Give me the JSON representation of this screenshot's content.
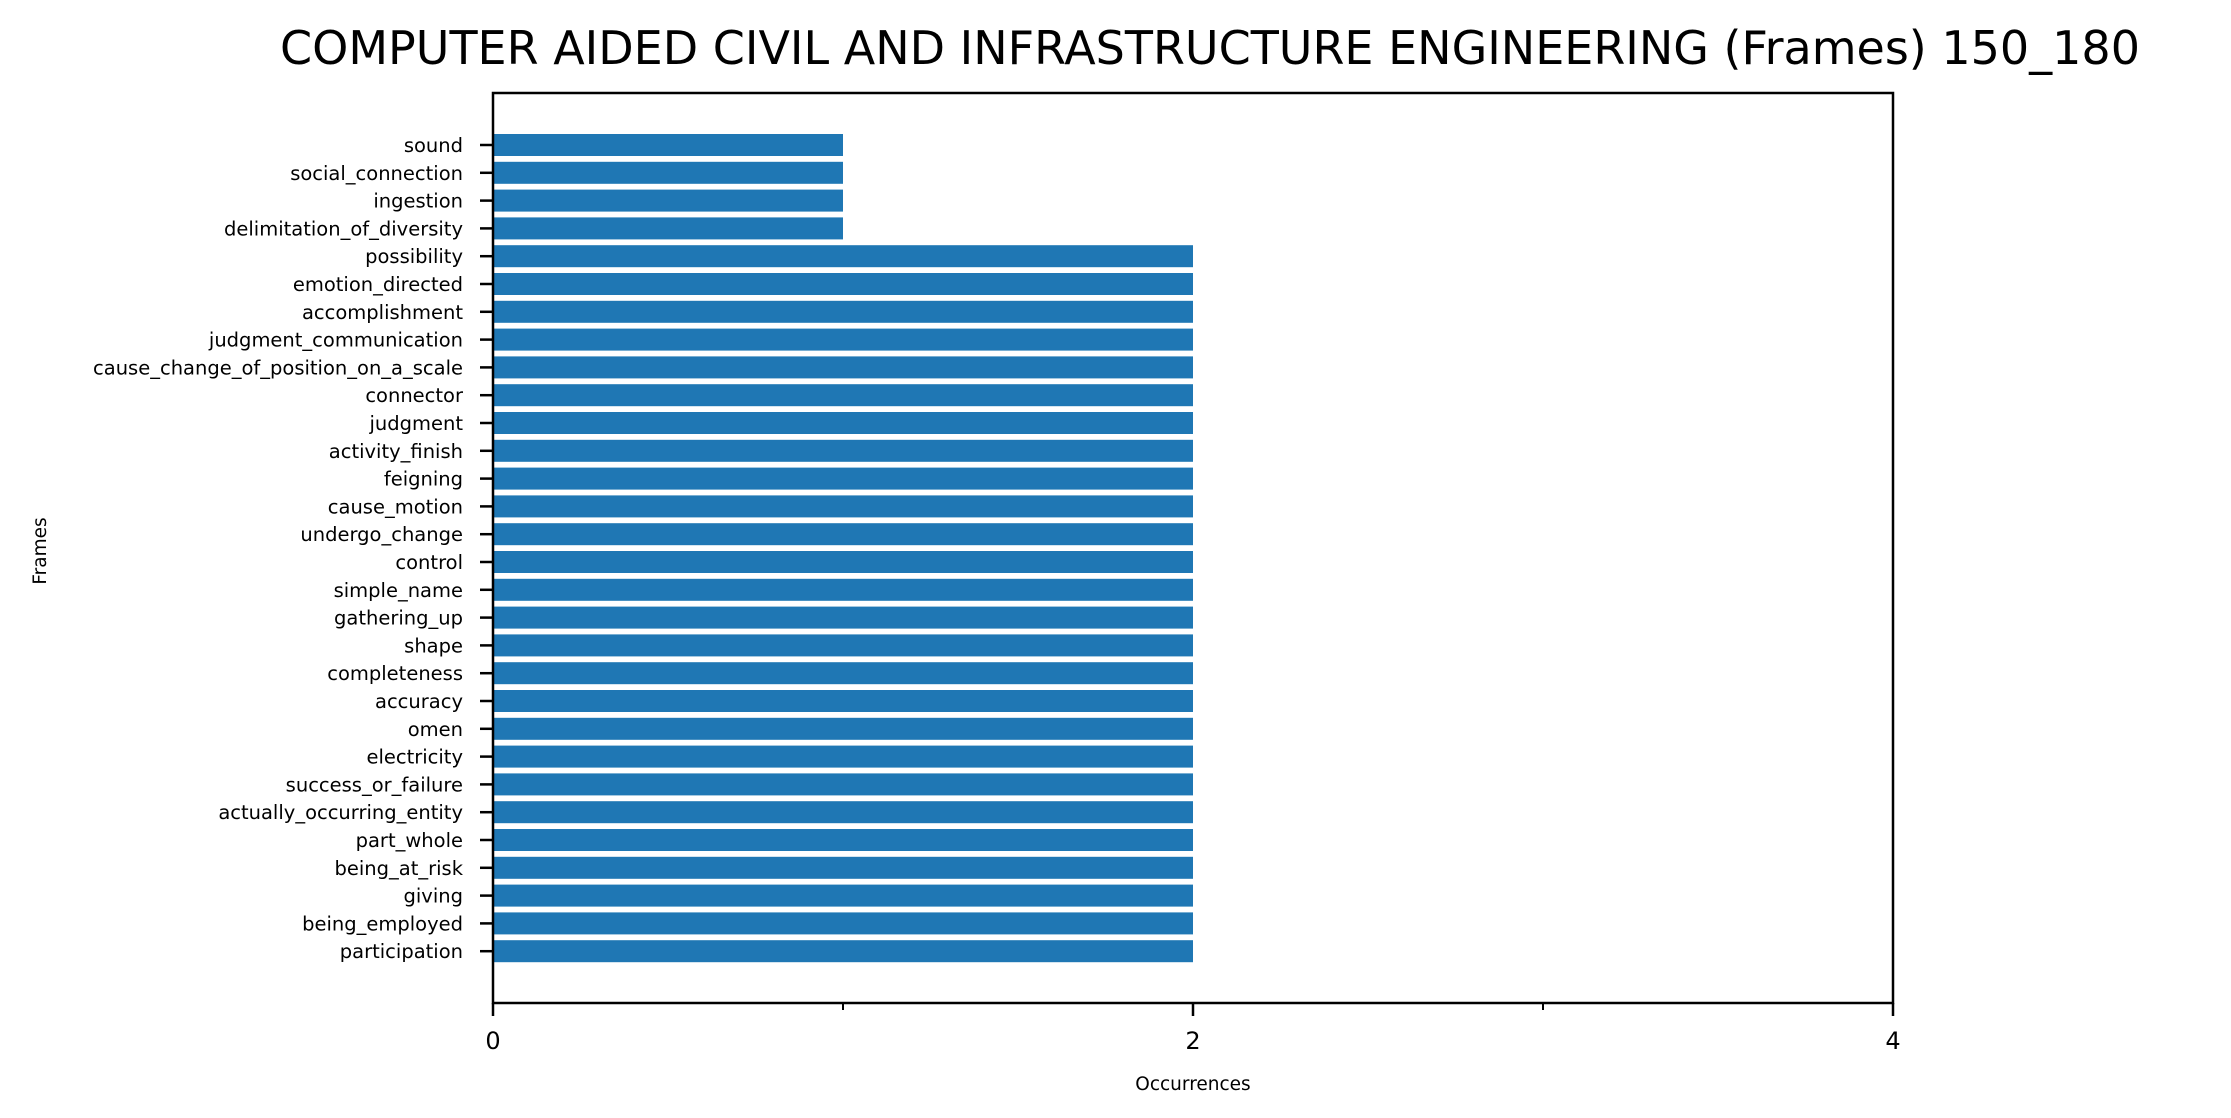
{
  "chart_data": {
    "type": "bar",
    "orientation": "horizontal",
    "title": "COMPUTER AIDED CIVIL AND INFRASTRUCTURE ENGINEERING (Frames) 150_180",
    "xlabel": "Occurrences",
    "ylabel": "Frames",
    "xlim": [
      0,
      4
    ],
    "x_ticks": [
      0,
      2,
      4
    ],
    "x_minor_ticks": [
      1,
      3
    ],
    "grid": false,
    "legend": "none",
    "bar_color": "#1f77b4",
    "categories": [
      "sound",
      "social_connection",
      "ingestion",
      "delimitation_of_diversity",
      "possibility",
      "emotion_directed",
      "accomplishment",
      "judgment_communication",
      "cause_change_of_position_on_a_scale",
      "connector",
      "judgment",
      "activity_finish",
      "feigning",
      "cause_motion",
      "undergo_change",
      "control",
      "simple_name",
      "gathering_up",
      "shape",
      "completeness",
      "accuracy",
      "omen",
      "electricity",
      "success_or_failure",
      "actually_occurring_entity",
      "part_whole",
      "being_at_risk",
      "giving",
      "being_employed",
      "participation"
    ],
    "values": [
      1,
      1,
      1,
      1,
      2,
      2,
      2,
      2,
      2,
      2,
      2,
      2,
      2,
      2,
      2,
      2,
      2,
      2,
      2,
      2,
      2,
      2,
      2,
      2,
      2,
      2,
      2,
      2,
      2,
      2
    ]
  }
}
